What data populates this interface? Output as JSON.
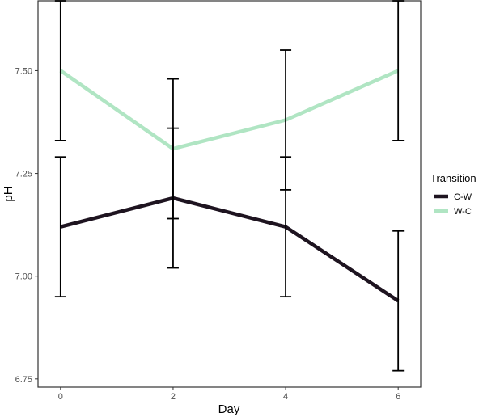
{
  "chart_data": {
    "type": "line",
    "xlabel": "Day",
    "ylabel": "pH",
    "x": [
      0,
      2,
      4,
      6
    ],
    "xlim": [
      -0.4,
      6.4
    ],
    "ylim": [
      6.73,
      7.67
    ],
    "x_ticks": [
      0,
      2,
      4,
      6
    ],
    "y_ticks": [
      6.75,
      7.0,
      7.25,
      7.5
    ],
    "y_tick_labels": [
      "6.75",
      "7.00",
      "7.25",
      "7.50"
    ],
    "x_tick_labels": [
      "0",
      "2",
      "4",
      "6"
    ],
    "grid": false,
    "legend": {
      "title": "Transition",
      "position": "right"
    },
    "series": [
      {
        "name": "C-W",
        "color": "#1e1420",
        "values": [
          7.12,
          7.19,
          7.12,
          6.94
        ],
        "error_low": [
          6.95,
          7.02,
          6.95,
          6.77
        ],
        "error_high": [
          7.29,
          7.36,
          7.29,
          7.11
        ]
      },
      {
        "name": "W-C",
        "color": "#b0e5c3",
        "values": [
          7.5,
          7.31,
          7.38,
          7.5
        ],
        "error_low": [
          7.33,
          7.14,
          7.21,
          7.33
        ],
        "error_high": [
          7.67,
          7.48,
          7.55,
          7.67
        ]
      }
    ]
  }
}
